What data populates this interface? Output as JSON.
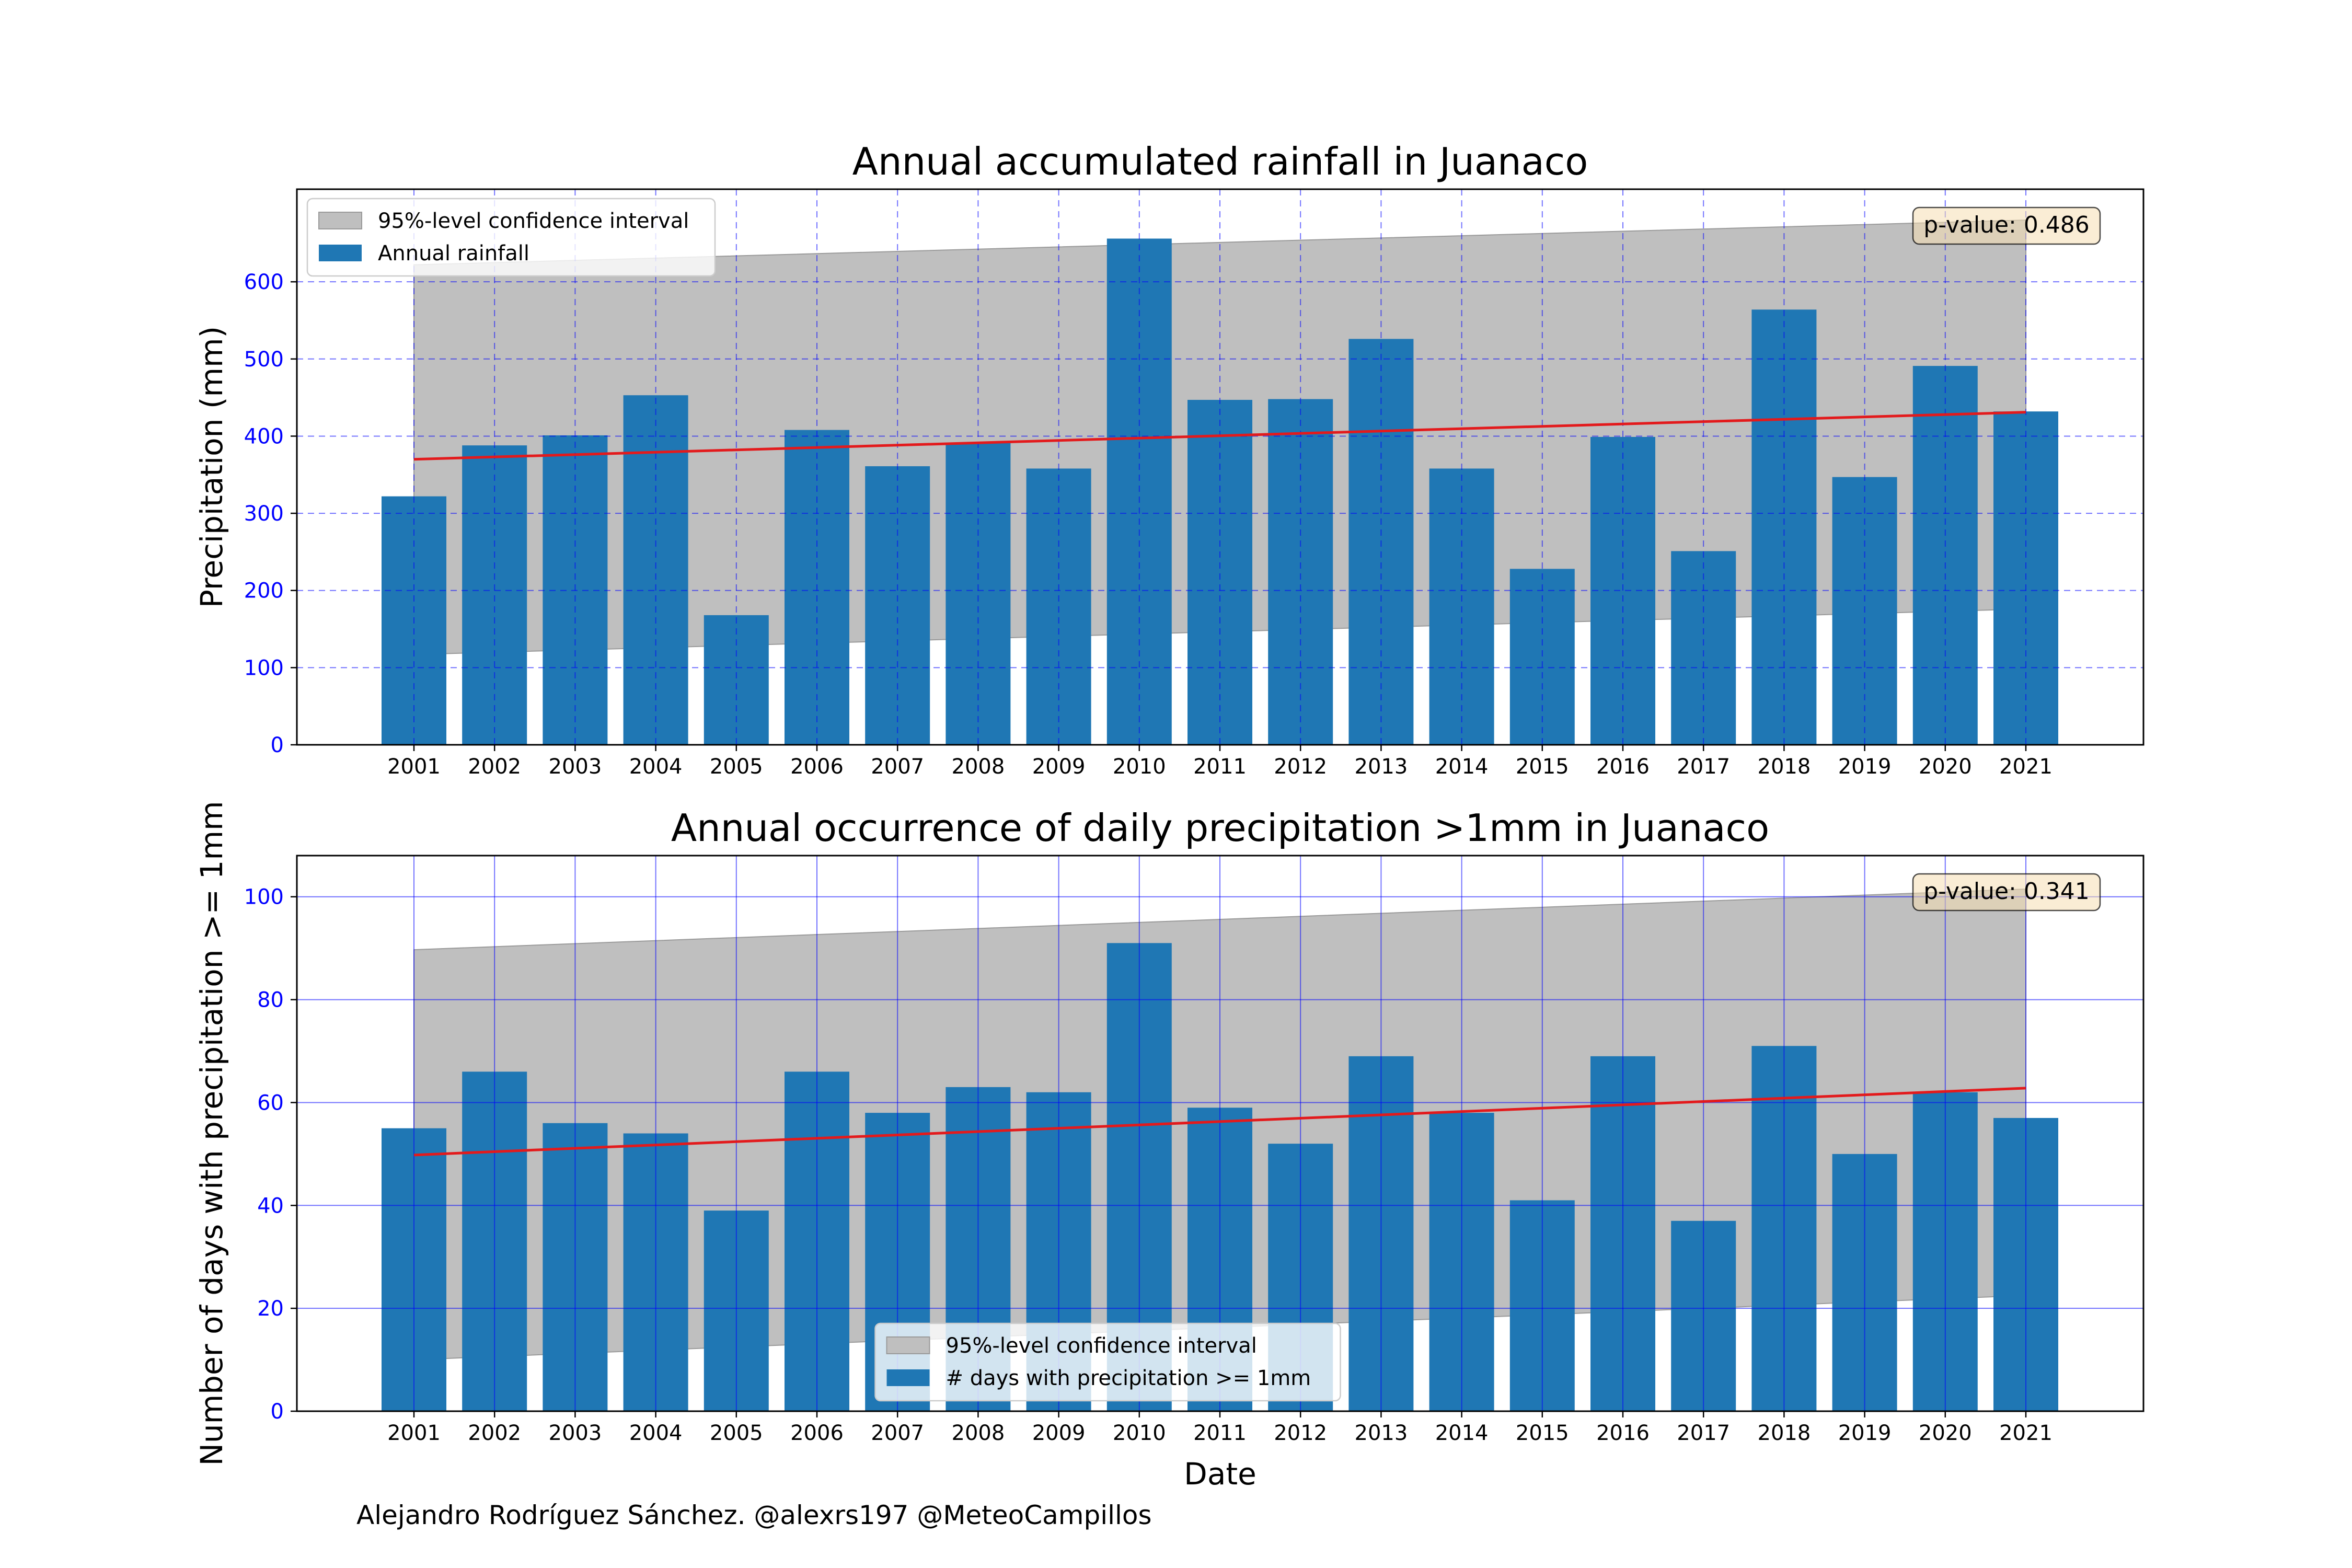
{
  "credit": "Alejandro Rodríguez Sánchez. @alexrs197 @MeteoCampillos",
  "chart_data": [
    {
      "type": "bar",
      "title": "Annual accumulated rainfall in Juanaco",
      "xlabel": "",
      "ylabel": "Precipitation (mm)",
      "categories": [
        "2001",
        "2002",
        "2003",
        "2004",
        "2005",
        "2006",
        "2007",
        "2008",
        "2009",
        "2010",
        "2011",
        "2012",
        "2013",
        "2014",
        "2015",
        "2016",
        "2017",
        "2018",
        "2019",
        "2020",
        "2021"
      ],
      "series": [
        {
          "name": "Annual rainfall",
          "values": [
            322,
            388,
            401,
            453,
            168,
            408,
            361,
            391,
            358,
            656,
            447,
            448,
            526,
            358,
            228,
            399,
            251,
            564,
            347,
            491,
            432
          ]
        }
      ],
      "trend": {
        "start": 370,
        "end": 431,
        "color": "#e31a1c"
      },
      "confidence_interval": {
        "name": "95%-level confidence interval",
        "lower_start": 117,
        "lower_end": 176,
        "upper_start": 622,
        "upper_end": 680
      },
      "annotation": "p-value: 0.486",
      "ylim": [
        0,
        720
      ],
      "yticks": [
        0,
        100,
        200,
        300,
        400,
        500,
        600
      ],
      "grid": "dashed",
      "legend_position": "upper left",
      "colors": {
        "bar": "#1f77b4",
        "ci": "#bfbfbf",
        "grid": "#0000ff",
        "tick_label": "#0000ff"
      }
    },
    {
      "type": "bar",
      "title": "Annual occurrence of daily precipitation >1mm in Juanaco",
      "xlabel": "Date",
      "ylabel": "Number of days with precipitation >= 1mm",
      "categories": [
        "2001",
        "2002",
        "2003",
        "2004",
        "2005",
        "2006",
        "2007",
        "2008",
        "2009",
        "2010",
        "2011",
        "2012",
        "2013",
        "2014",
        "2015",
        "2016",
        "2017",
        "2018",
        "2019",
        "2020",
        "2021"
      ],
      "series": [
        {
          "name": "# days with precipitation >= 1mm",
          "values": [
            55,
            66,
            56,
            54,
            39,
            66,
            58,
            63,
            62,
            91,
            59,
            52,
            69,
            58,
            41,
            69,
            37,
            71,
            50,
            62,
            57
          ]
        }
      ],
      "trend": {
        "start": 49.8,
        "end": 62.8,
        "color": "#e31a1c"
      },
      "confidence_interval": {
        "name": "95%-level confidence interval",
        "lower_start": 10,
        "lower_end": 22.5,
        "upper_start": 89.7,
        "upper_end": 101.5
      },
      "annotation": "p-value: 0.341",
      "ylim": [
        0,
        108
      ],
      "yticks": [
        0,
        20,
        40,
        60,
        80,
        100
      ],
      "grid": "solid",
      "legend_position": "lower center",
      "colors": {
        "bar": "#1f77b4",
        "ci": "#bfbfbf",
        "grid": "#0000ff",
        "tick_label": "#0000ff"
      }
    }
  ]
}
